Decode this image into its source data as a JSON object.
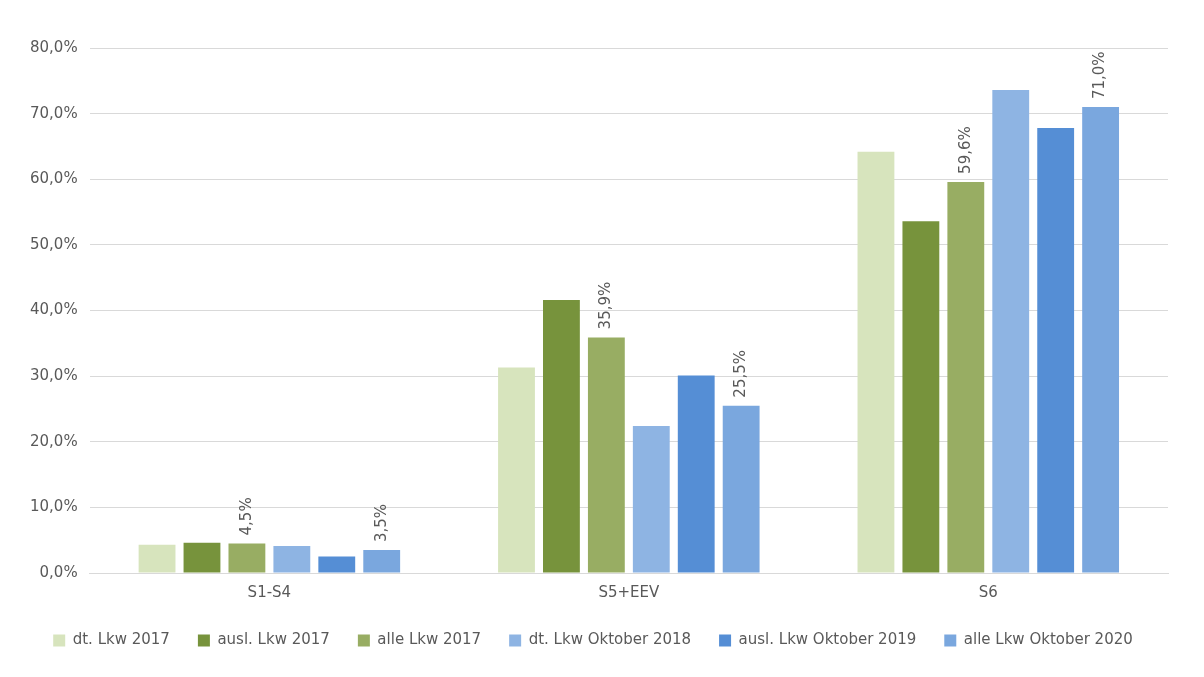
{
  "chart_data": {
    "type": "bar",
    "categories": [
      "S1-S4",
      "S5+EEV",
      "S6"
    ],
    "series": [
      {
        "name": "dt. Lkw 2017",
        "color": "#d7e4bd",
        "values": [
          4.3,
          31.3,
          64.2
        ]
      },
      {
        "name": "ausl. Lkw 2017",
        "color": "#77933c",
        "values": [
          4.6,
          41.6,
          53.6
        ]
      },
      {
        "name": "alle Lkw 2017",
        "color": "#98ad63",
        "values": [
          4.5,
          35.9,
          59.6
        ],
        "value_labels": [
          "4,5%",
          "35,9%",
          "59,6%"
        ]
      },
      {
        "name": "dt. Lkw Oktober 2018",
        "color": "#8eb4e3",
        "values": [
          4.1,
          22.4,
          73.6
        ]
      },
      {
        "name": "ausl. Lkw Oktober 2019",
        "color": "#558ed5",
        "values": [
          2.5,
          30.1,
          67.8
        ]
      },
      {
        "name": "alle Lkw Oktober 2020",
        "color": "#7aa7de",
        "values": [
          3.5,
          25.5,
          71.0
        ],
        "value_labels": [
          "3,5%",
          "25,5%",
          "71,0%"
        ]
      }
    ],
    "ylim": [
      0,
      80
    ],
    "yticks": [
      {
        "value": 0,
        "label": "0,0%"
      },
      {
        "value": 10,
        "label": "10,0%"
      },
      {
        "value": 20,
        "label": "20,0%"
      },
      {
        "value": 30,
        "label": "30,0%"
      },
      {
        "value": 40,
        "label": "40,0%"
      },
      {
        "value": 50,
        "label": "50,0%"
      },
      {
        "value": 60,
        "label": "60,0%"
      },
      {
        "value": 70,
        "label": "70,0%"
      },
      {
        "value": 80,
        "label": "80,0%"
      }
    ],
    "grid": "y",
    "legend": "bottom"
  }
}
